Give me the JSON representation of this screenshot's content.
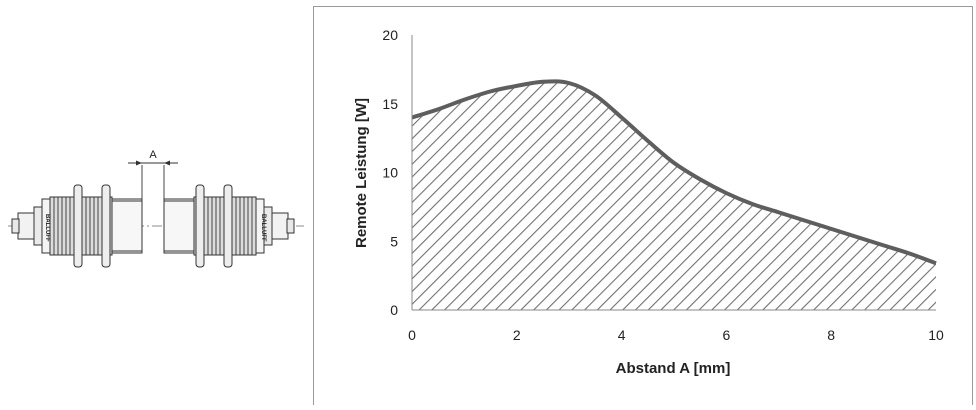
{
  "sensor_drawing": {
    "gap_label": "A",
    "brand_text": "BALLUFF"
  },
  "chart_data": {
    "type": "area",
    "title": "",
    "xlabel": "Abstand A [mm]",
    "ylabel": "Remote Leistung [W]",
    "xlim": [
      0,
      10
    ],
    "ylim": [
      0,
      20
    ],
    "x_ticks": [
      "0",
      "2",
      "4",
      "6",
      "8",
      "10"
    ],
    "y_ticks": [
      "0",
      "5",
      "10",
      "15",
      "20"
    ],
    "grid": false,
    "fill_pattern": "diagonal-hatch",
    "line_color": "#5e5e5e",
    "hatch_color": "#707070",
    "x": [
      0,
      0.5,
      1,
      1.5,
      2,
      2.5,
      3,
      3.5,
      4,
      4.5,
      5,
      5.5,
      6,
      6.5,
      7,
      7.5,
      8,
      8.5,
      9,
      9.5,
      10
    ],
    "y": [
      14.0,
      14.6,
      15.3,
      15.9,
      16.3,
      16.6,
      16.5,
      15.6,
      14.0,
      12.3,
      10.7,
      9.5,
      8.5,
      7.7,
      7.1,
      6.5,
      5.9,
      5.3,
      4.7,
      4.1,
      3.4
    ]
  }
}
